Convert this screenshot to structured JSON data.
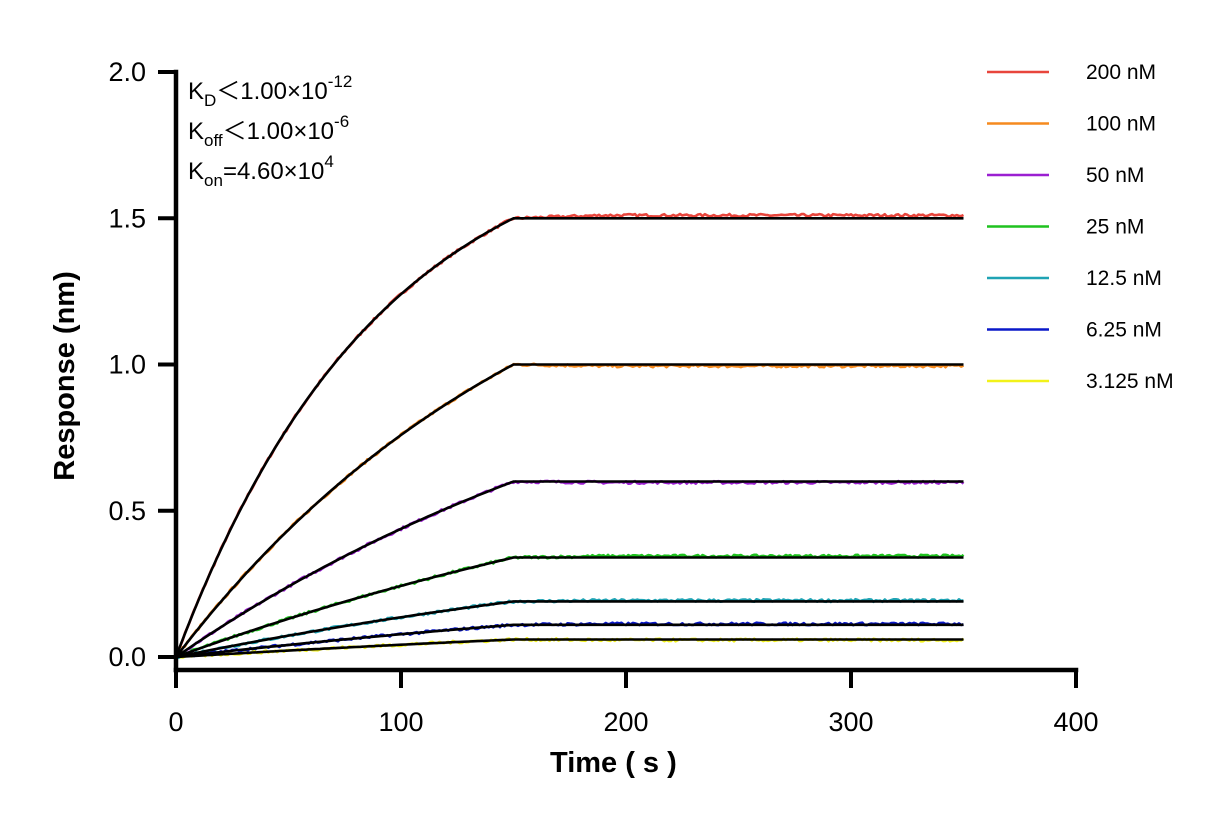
{
  "chart_data": {
    "type": "line",
    "xlabel": "Time ( s )",
    "ylabel": "Response (nm)",
    "xlim": [
      0,
      400
    ],
    "ylim": [
      0,
      2.0
    ],
    "xticks": [
      0,
      100,
      200,
      300,
      400
    ],
    "xtick_labels": [
      "0",
      "100",
      "200",
      "300",
      "400"
    ],
    "yticks": [
      0,
      0.5,
      1.0,
      1.5,
      2.0
    ],
    "ytick_labels": [
      "0.0",
      "0.5",
      "1.0",
      "1.5",
      "2.0"
    ],
    "grid": false,
    "legend_position": "top-right",
    "association_end_time": 150,
    "data_end_time": 350,
    "fit_color": "#000000",
    "annotations": [
      {
        "main": "K",
        "sub": "D",
        "rest": "＜1.00×10",
        "sup": "-12"
      },
      {
        "main": "K",
        "sub": "off",
        "rest": "＜1.00×10",
        "sup": "-6"
      },
      {
        "main": "K",
        "sub": "on",
        "rest": "=4.60×10",
        "sup": "4"
      }
    ],
    "series": [
      {
        "name": "200 nM",
        "color": "#e8453c",
        "plateau": 1.5,
        "k": 0.0111,
        "measured_end": 1.51
      },
      {
        "name": "100 nM",
        "color": "#f58a1f",
        "plateau": 1.0,
        "k": 0.0059,
        "measured_end": 0.995
      },
      {
        "name": "50 nM",
        "color": "#9b1fd1",
        "plateau": 0.6,
        "k": 0.004,
        "measured_end": 0.597
      },
      {
        "name": "25 nM",
        "color": "#1fc21f",
        "plateau": 0.34,
        "k": 0.003,
        "measured_end": 0.345
      },
      {
        "name": "12.5 nM",
        "color": "#1fa3b4",
        "plateau": 0.19,
        "k": 0.003,
        "measured_end": 0.193
      },
      {
        "name": "6.25 nM",
        "color": "#0a18c9",
        "plateau": 0.11,
        "k": 0.0025,
        "measured_end": 0.113
      },
      {
        "name": "3.125 nM",
        "color": "#f2f21a",
        "plateau": 0.06,
        "k": 0.002,
        "measured_end": 0.058
      }
    ]
  }
}
